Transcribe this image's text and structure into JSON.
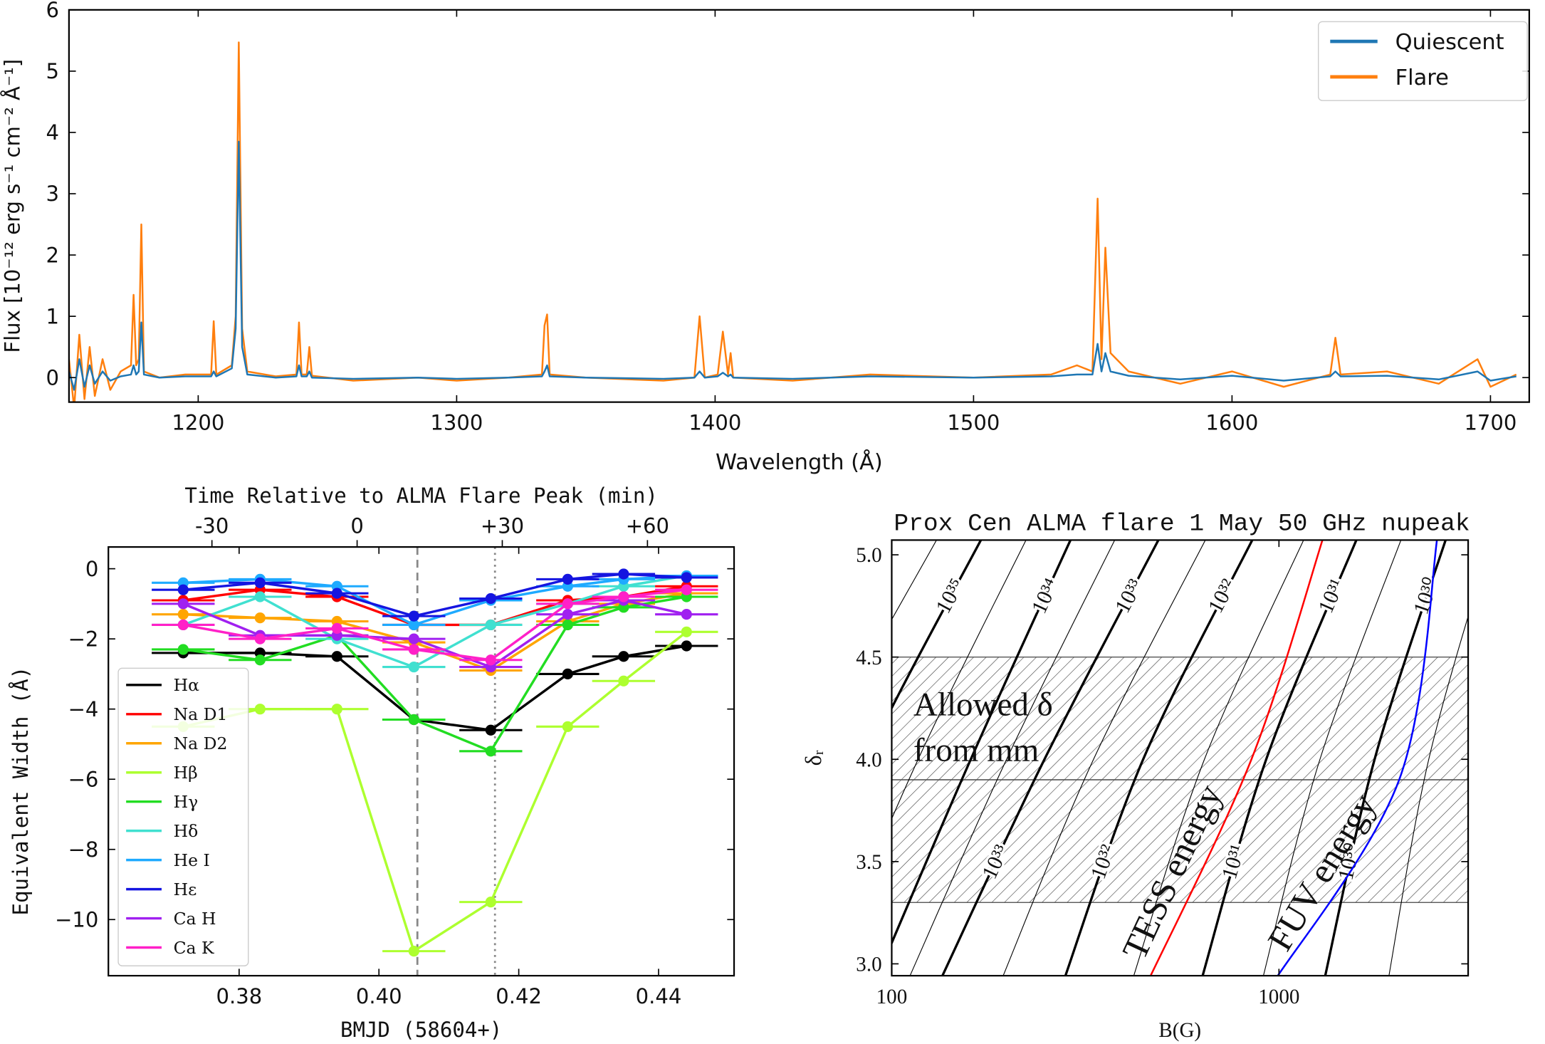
{
  "chart_data": [
    {
      "type": "line",
      "xlabel": "Wavelength (Å)",
      "ylabel": "Flux [10⁻¹² erg s⁻¹ cm⁻² Å⁻¹]",
      "x": [
        1150,
        1152,
        1154,
        1156,
        1158,
        1160,
        1163,
        1166,
        1170,
        1174,
        1175,
        1176,
        1177,
        1178,
        1179,
        1185,
        1195,
        1205,
        1206,
        1207,
        1213,
        1214.5,
        1215.7,
        1217,
        1219,
        1230,
        1238,
        1239,
        1240,
        1242,
        1243,
        1244,
        1260,
        1285,
        1300,
        1320,
        1333,
        1334,
        1335,
        1336,
        1350,
        1380,
        1392,
        1394,
        1396,
        1401,
        1403,
        1405,
        1406,
        1407,
        1430,
        1460,
        1500,
        1530,
        1540,
        1546,
        1548,
        1549.5,
        1551,
        1553,
        1560,
        1580,
        1600,
        1620,
        1638,
        1640,
        1642,
        1660,
        1680,
        1695,
        1700,
        1710
      ],
      "series": [
        {
          "name": "Quiescent",
          "color": "#1f77b4",
          "values": [
            0.1,
            -0.2,
            0.3,
            -0.15,
            0.2,
            -0.1,
            0.1,
            -0.05,
            0.02,
            0.05,
            0.2,
            0.05,
            0.1,
            0.9,
            0.05,
            0,
            0.02,
            0.02,
            0.1,
            0.02,
            0.15,
            0.8,
            3.85,
            0.5,
            0.05,
            0,
            0.02,
            0.2,
            0.02,
            0.02,
            0.1,
            0,
            -0.02,
            0,
            -0.02,
            0,
            0.02,
            0.1,
            0.2,
            0.02,
            0,
            -0.02,
            0,
            0.1,
            0,
            0.02,
            0.08,
            0.02,
            0.05,
            0,
            -0.02,
            0.02,
            0,
            0.02,
            0.05,
            0.05,
            0.55,
            0.1,
            0.4,
            0.1,
            0.03,
            -0.03,
            0.03,
            -0.05,
            0.02,
            0.1,
            0.02,
            0.03,
            -0.03,
            0.1,
            -0.05,
            0.02
          ]
        },
        {
          "name": "Flare",
          "color": "#ff7f0e",
          "values": [
            0.3,
            -0.5,
            0.7,
            -0.35,
            0.5,
            -0.3,
            0.3,
            -0.2,
            0.1,
            0.2,
            1.35,
            0.2,
            0.3,
            2.5,
            0.1,
            0,
            0.05,
            0.05,
            0.92,
            0.05,
            0.2,
            1.0,
            5.47,
            0.8,
            0.1,
            0.02,
            0.05,
            0.9,
            0.05,
            0.05,
            0.5,
            0.03,
            -0.05,
            0,
            -0.05,
            0,
            0.05,
            0.85,
            1.03,
            0.05,
            0,
            -0.05,
            0,
            1.0,
            0,
            0.05,
            0.75,
            0.05,
            0.4,
            0,
            -0.05,
            0.05,
            0,
            0.05,
            0.2,
            0.1,
            2.92,
            0.3,
            2.12,
            0.4,
            0.1,
            -0.1,
            0.1,
            -0.15,
            0.05,
            0.65,
            0.05,
            0.1,
            -0.1,
            0.3,
            -0.15,
            0.05
          ]
        }
      ],
      "xlim": [
        1150,
        1715
      ],
      "ylim": [
        -0.4,
        6
      ],
      "xticks": [
        1200,
        1300,
        1400,
        1500,
        1600,
        1700
      ],
      "yticks": [
        0,
        1,
        2,
        3,
        4,
        5,
        6
      ],
      "legend": "upper right"
    },
    {
      "type": "errorbar",
      "xlabel": "BMJD (58604+)",
      "ylabel": "Equivalent Width (Å)",
      "x2label": "Time Relative to ALMA Flare Peak (min)",
      "x": [
        0.372,
        0.383,
        0.394,
        0.405,
        0.416,
        0.427,
        0.435,
        0.444
      ],
      "xerr": 0.0045,
      "series": [
        {
          "name": "Hα",
          "color": "#000000",
          "values": [
            -2.4,
            -2.4,
            -2.5,
            -4.3,
            -4.6,
            -3.0,
            -2.5,
            -2.2
          ]
        },
        {
          "name": "Na D1",
          "color": "#ff0000",
          "values": [
            -0.9,
            -0.6,
            -0.8,
            -1.6,
            -1.6,
            -0.9,
            -0.8,
            -0.5
          ]
        },
        {
          "name": "Na D2",
          "color": "#ffa500",
          "values": [
            -1.3,
            -1.4,
            -1.5,
            -2.1,
            -2.9,
            -1.5,
            -1.0,
            -0.7
          ]
        },
        {
          "name": "Hβ",
          "color": "#adff2f",
          "values": [
            -4.5,
            -4.0,
            -4.0,
            -10.9,
            -9.5,
            -4.5,
            -3.2,
            -1.8
          ]
        },
        {
          "name": "Hγ",
          "color": "#22dd22",
          "values": [
            -2.3,
            -2.6,
            -1.9,
            -4.3,
            -5.2,
            -1.6,
            -1.1,
            -0.8
          ]
        },
        {
          "name": "Hδ",
          "color": "#40e0d0",
          "values": [
            -1.6,
            -0.8,
            -2.0,
            -2.8,
            -1.6,
            -1.0,
            -0.5,
            -0.2
          ]
        },
        {
          "name": "He I",
          "color": "#1eaaff",
          "values": [
            -0.4,
            -0.3,
            -0.5,
            -1.6,
            -0.9,
            -0.5,
            -0.3,
            -0.2
          ]
        },
        {
          "name": "Hε",
          "color": "#1515e0",
          "values": [
            -0.6,
            -0.4,
            -0.7,
            -1.35,
            -0.85,
            -0.3,
            -0.15,
            -0.25
          ]
        },
        {
          "name": "Ca H",
          "color": "#a020f0",
          "values": [
            -1.0,
            -1.9,
            -1.9,
            -2.0,
            -2.8,
            -1.3,
            -0.9,
            -1.3
          ]
        },
        {
          "name": "Ca K",
          "color": "#ff20c8",
          "values": [
            -1.6,
            -2.0,
            -1.7,
            -2.3,
            -2.6,
            -1.0,
            -0.8,
            -0.6
          ]
        }
      ],
      "vlines": [
        0.4055,
        0.4166
      ],
      "xlim": [
        0.3613,
        0.4508
      ],
      "ylim": [
        -11.6,
        0.62
      ],
      "xticks": [
        0.38,
        {
          "value": 0.4,
          "label": "0.40"
        },
        0.42,
        0.44
      ],
      "yticks": [
        {
          "value": -10,
          "label": "−10"
        },
        {
          "value": -8,
          "label": "−8"
        },
        {
          "value": -6,
          "label": "−6"
        },
        {
          "value": -4,
          "label": "−4"
        },
        {
          "value": -2,
          "label": "−2"
        },
        0
      ],
      "x2lim": [
        -51.4,
        77.9
      ],
      "x2ticks": [
        {
          "value": -30,
          "label": "-30"
        },
        0,
        {
          "value": 30,
          "label": "+30"
        },
        {
          "value": 60,
          "label": "+60"
        }
      ],
      "legend": "lower left"
    },
    {
      "type": "contour",
      "title": "Prox Cen ALMA flare 1 May 50 GHz nupeak",
      "xlabel": "B(G)",
      "ylabel": "δᵣ",
      "xscale": "log",
      "xlim": [
        100,
        3080
      ],
      "ylim": [
        2.942,
        5.072
      ],
      "xticks": [
        100,
        1000
      ],
      "yticks": [
        {
          "value": 3,
          "label": "3.0"
        },
        3.5,
        {
          "value": 4,
          "label": "4.0"
        },
        4.5,
        {
          "value": 5,
          "label": "5.0"
        }
      ],
      "bands": [
        [
          3.3,
          3.9
        ],
        [
          3.9,
          4.5
        ]
      ],
      "annotations": [
        "Allowed δ",
        "from mm"
      ],
      "contours": [
        {
          "width": "thin",
          "x": [
            36,
            64,
            133
          ],
          "y": [
            2.9,
            4,
            5.1
          ]
        },
        {
          "label": "10³⁵",
          "width": "thick",
          "x": [
            49,
            86,
            173
          ],
          "y": [
            2.9,
            4,
            5.1
          ]
        },
        {
          "width": "thin",
          "x": [
            66,
            117,
            226
          ],
          "y": [
            2.9,
            4,
            5.1
          ]
        },
        {
          "label": "10³⁴",
          "width": "thick",
          "x": [
            90,
            160,
            294
          ],
          "y": [
            2.9,
            4,
            5.1
          ]
        },
        {
          "width": "thin",
          "x": [
            109,
            198,
            383
          ],
          "y": [
            2.9,
            4,
            5.1
          ]
        },
        {
          "label": "10³³",
          "width": "thick",
          "x": [
            132,
            248,
            497
          ],
          "y": [
            2.9,
            4,
            5.1
          ]
        },
        {
          "width": "thin",
          "x": [
            190,
            332,
            657
          ],
          "y": [
            2.9,
            4,
            5.1
          ]
        },
        {
          "label": "10³²",
          "width": "thick",
          "x": [
            276,
            446,
            868
          ],
          "y": [
            2.9,
            4,
            5.1
          ]
        },
        {
          "width": "thin",
          "x": [
            415,
            642,
            1176
          ],
          "y": [
            2.9,
            4,
            5.1
          ]
        },
        {
          "label": "10³¹",
          "width": "thick",
          "x": [
            626,
            927,
            1607
          ],
          "y": [
            2.9,
            4,
            5.1
          ]
        },
        {
          "width": "thin",
          "x": [
            900,
            1276,
            2092
          ],
          "y": [
            2.9,
            4,
            5.1
          ]
        },
        {
          "label": "10³⁰",
          "width": "thick",
          "x": [
            1302,
            1766,
            2724
          ],
          "y": [
            2.9,
            4,
            5.1
          ]
        },
        {
          "width": "thin",
          "x": [
            1906,
            2437,
            3562
          ],
          "y": [
            2.9,
            4,
            5.1
          ]
        }
      ],
      "series": [
        {
          "name": "TESS energy",
          "color": "#ff0000",
          "x": [
            455,
            849,
            1309
          ],
          "y": [
            2.9,
            4,
            5.1
          ]
        },
        {
          "name": "FUV energy",
          "color": "#0000ff",
          "x": [
            960,
            2044,
            2570
          ],
          "y": [
            2.9,
            3.9,
            5.1
          ]
        }
      ]
    }
  ]
}
